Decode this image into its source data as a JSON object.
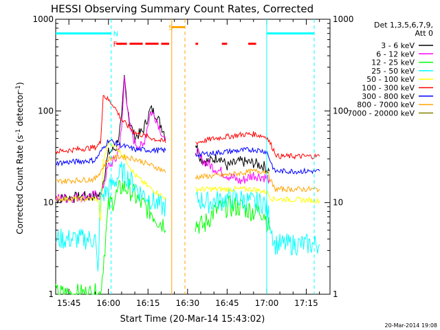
{
  "page": {
    "stamp": "20-Mar-2014 19:08"
  },
  "chart_data": {
    "type": "line",
    "title": "HESSI Observing Summary Count Rates, Corrected",
    "xlabel": "Start Time (20-Mar-14 15:43:02)",
    "ylabel_main": "Corrected Count Rate (s",
    "ylabel_sup1": "-1",
    "ylabel_mid": " detector",
    "ylabel_sup2": "-1",
    "ylabel_end": ")",
    "y_scale": "log",
    "xlim": [
      "15:40",
      "17:24"
    ],
    "ylim": [
      1,
      1000
    ],
    "x_ticks": [
      {
        "t": "15:45",
        "label": "15:45"
      },
      {
        "t": "16:00",
        "label": "16:00"
      },
      {
        "t": "16:15",
        "label": "16:15"
      },
      {
        "t": "16:30",
        "label": "16:30"
      },
      {
        "t": "16:45",
        "label": "16:45"
      },
      {
        "t": "17:00",
        "label": "17:00"
      },
      {
        "t": "17:15",
        "label": "17:15"
      }
    ],
    "y_ticks": [
      {
        "v": 1,
        "label": "1"
      },
      {
        "v": 10,
        "label": "10"
      },
      {
        "v": 100,
        "label": "100"
      },
      {
        "v": 1000,
        "label": "1000"
      }
    ],
    "legend_header": [
      "Det 1,3,5,6,7,9,",
      "Att 0"
    ],
    "legend_position": "right",
    "grid": false,
    "series": [
      {
        "name": "3 - 6 keV",
        "color": "#000000",
        "x": [
          "15:40",
          "15:57",
          "16:00",
          "16:03",
          "16:05",
          "16:06",
          "16:08",
          "16:10",
          "16:13",
          "16:16",
          "16:18",
          "16:21",
          "16:22",
          "16:33",
          "16:35",
          "16:38",
          "16:42",
          "16:45",
          "16:50",
          "16:55",
          "16:59",
          "17:01"
        ],
        "y": [
          11,
          12,
          35,
          40,
          80,
          230,
          75,
          52,
          60,
          105,
          92,
          60,
          45,
          45,
          30,
          28,
          32,
          25,
          28,
          27,
          25,
          22
        ]
      },
      {
        "name": "6 - 12 keV",
        "color": "#ff00ff",
        "x": [
          "15:40",
          "15:57",
          "16:00",
          "16:03",
          "16:05",
          "16:06",
          "16:08",
          "16:10",
          "16:13",
          "16:16",
          "16:18",
          "16:21",
          "16:22",
          "16:33",
          "16:35",
          "16:40",
          "16:45",
          "16:50",
          "16:55",
          "16:59",
          "17:01"
        ],
        "y": [
          11,
          12,
          25,
          30,
          60,
          230,
          70,
          45,
          40,
          98,
          85,
          50,
          40,
          38,
          30,
          24,
          20,
          17,
          20,
          19,
          18
        ]
      },
      {
        "name": "12 - 25 keV",
        "color": "#00ff00",
        "x": [
          "15:40",
          "15:57",
          "16:00",
          "16:03",
          "16:05",
          "16:08",
          "16:12",
          "16:16",
          "16:20",
          "16:22",
          "16:33",
          "16:36",
          "16:40",
          "16:45",
          "16:50",
          "16:55",
          "16:59",
          "17:01"
        ],
        "y": [
          1,
          1,
          9,
          12,
          15,
          14,
          10,
          8,
          6,
          6,
          6,
          5.5,
          8,
          9,
          9,
          8,
          8,
          5
        ]
      },
      {
        "name": "25 - 50 keV",
        "color": "#00ffff",
        "x": [
          "15:40",
          "15:55",
          "15:56",
          "15:57",
          "15:58",
          "16:00",
          "16:03",
          "16:05",
          "16:08",
          "16:12",
          "16:16",
          "16:20",
          "16:22",
          "16:33",
          "16:38",
          "16:45",
          "16:50",
          "16:55",
          "16:59",
          "17:01",
          "17:03",
          "17:20"
        ],
        "y": [
          4,
          4,
          1.6,
          12,
          12,
          14,
          18,
          22,
          18,
          13,
          11,
          9,
          9,
          11,
          10,
          11,
          11,
          10,
          10,
          7,
          3.5,
          3.5
        ]
      },
      {
        "name": "50 - 100 keV",
        "color": "#ffff00",
        "x": [
          "15:40",
          "15:56",
          "15:57",
          "15:58",
          "16:00",
          "16:03",
          "16:06",
          "16:10",
          "16:15",
          "16:20",
          "16:22",
          "16:33",
          "16:45",
          "16:55",
          "17:00",
          "17:02",
          "17:20"
        ],
        "y": [
          11,
          11,
          6,
          28,
          46,
          40,
          32,
          20,
          15,
          12,
          11,
          14,
          14,
          14,
          13,
          11,
          10.5
        ]
      },
      {
        "name": "100 - 300 keV",
        "color": "#ff0000",
        "x": [
          "15:40",
          "15:55",
          "15:57",
          "15:58",
          "16:02",
          "16:05",
          "16:10",
          "16:15",
          "16:20",
          "16:22",
          "16:33",
          "16:40",
          "16:50",
          "16:55",
          "17:00",
          "17:04",
          "17:20"
        ],
        "y": [
          36,
          40,
          45,
          150,
          115,
          80,
          58,
          52,
          47,
          46,
          45,
          50,
          55,
          56,
          52,
          32,
          32
        ]
      },
      {
        "name": "300 - 800 keV",
        "color": "#0000ff",
        "x": [
          "15:40",
          "15:55",
          "16:00",
          "16:05",
          "16:10",
          "16:20",
          "16:22",
          "16:33",
          "16:45",
          "16:55",
          "17:00",
          "17:03",
          "17:20"
        ],
        "y": [
          27,
          29,
          48,
          42,
          38,
          37,
          37,
          33,
          36,
          38,
          36,
          22,
          22
        ]
      },
      {
        "name": "800 - 7000 keV",
        "color": "#ffa500",
        "x": [
          "15:40",
          "15:55",
          "16:00",
          "16:05",
          "16:10",
          "16:20",
          "16:22",
          "16:33",
          "16:45",
          "16:55",
          "17:00",
          "17:03",
          "17:20"
        ],
        "y": [
          17,
          18,
          30,
          32,
          30,
          23,
          21,
          19,
          20,
          22,
          22,
          14,
          14
        ]
      },
      {
        "name": "7000 - 20000 keV",
        "color": "#808000",
        "x": [],
        "y": []
      }
    ],
    "cursors": [
      {
        "t": "16:01",
        "color": "#00ffff",
        "style": "dashed"
      },
      {
        "t": "17:00",
        "color": "#00ffff",
        "style": "solid"
      },
      {
        "t": "17:18",
        "color": "#00ffff",
        "style": "dashed"
      },
      {
        "t": "16:24",
        "color": "#ffa500",
        "style": "solid"
      },
      {
        "t": "16:29",
        "color": "#ffa500",
        "style": "dashed"
      }
    ],
    "flag_bars": [
      {
        "y": 700,
        "color": "#00ffff",
        "segments": [
          [
            "15:40",
            "16:01"
          ],
          [
            "17:00",
            "17:18"
          ]
        ],
        "label": "N",
        "label_t": "16:01"
      },
      {
        "y": 540,
        "color": "#ff0000",
        "segments": [
          [
            "16:03",
            "16:07"
          ],
          [
            "16:08",
            "16:13"
          ],
          [
            "16:14",
            "16:19"
          ],
          [
            "16:20",
            "16:23"
          ],
          [
            "16:33",
            "16:34"
          ],
          [
            "16:43",
            "16:45"
          ],
          [
            "16:53",
            "16:56"
          ]
        ],
        "label": "F",
        "label_t": "16:01"
      },
      {
        "y": 820,
        "color": "#ffa500",
        "segments": [
          [
            "16:24",
            "16:29"
          ]
        ],
        "label": "S",
        "label_t": "16:22"
      }
    ]
  }
}
